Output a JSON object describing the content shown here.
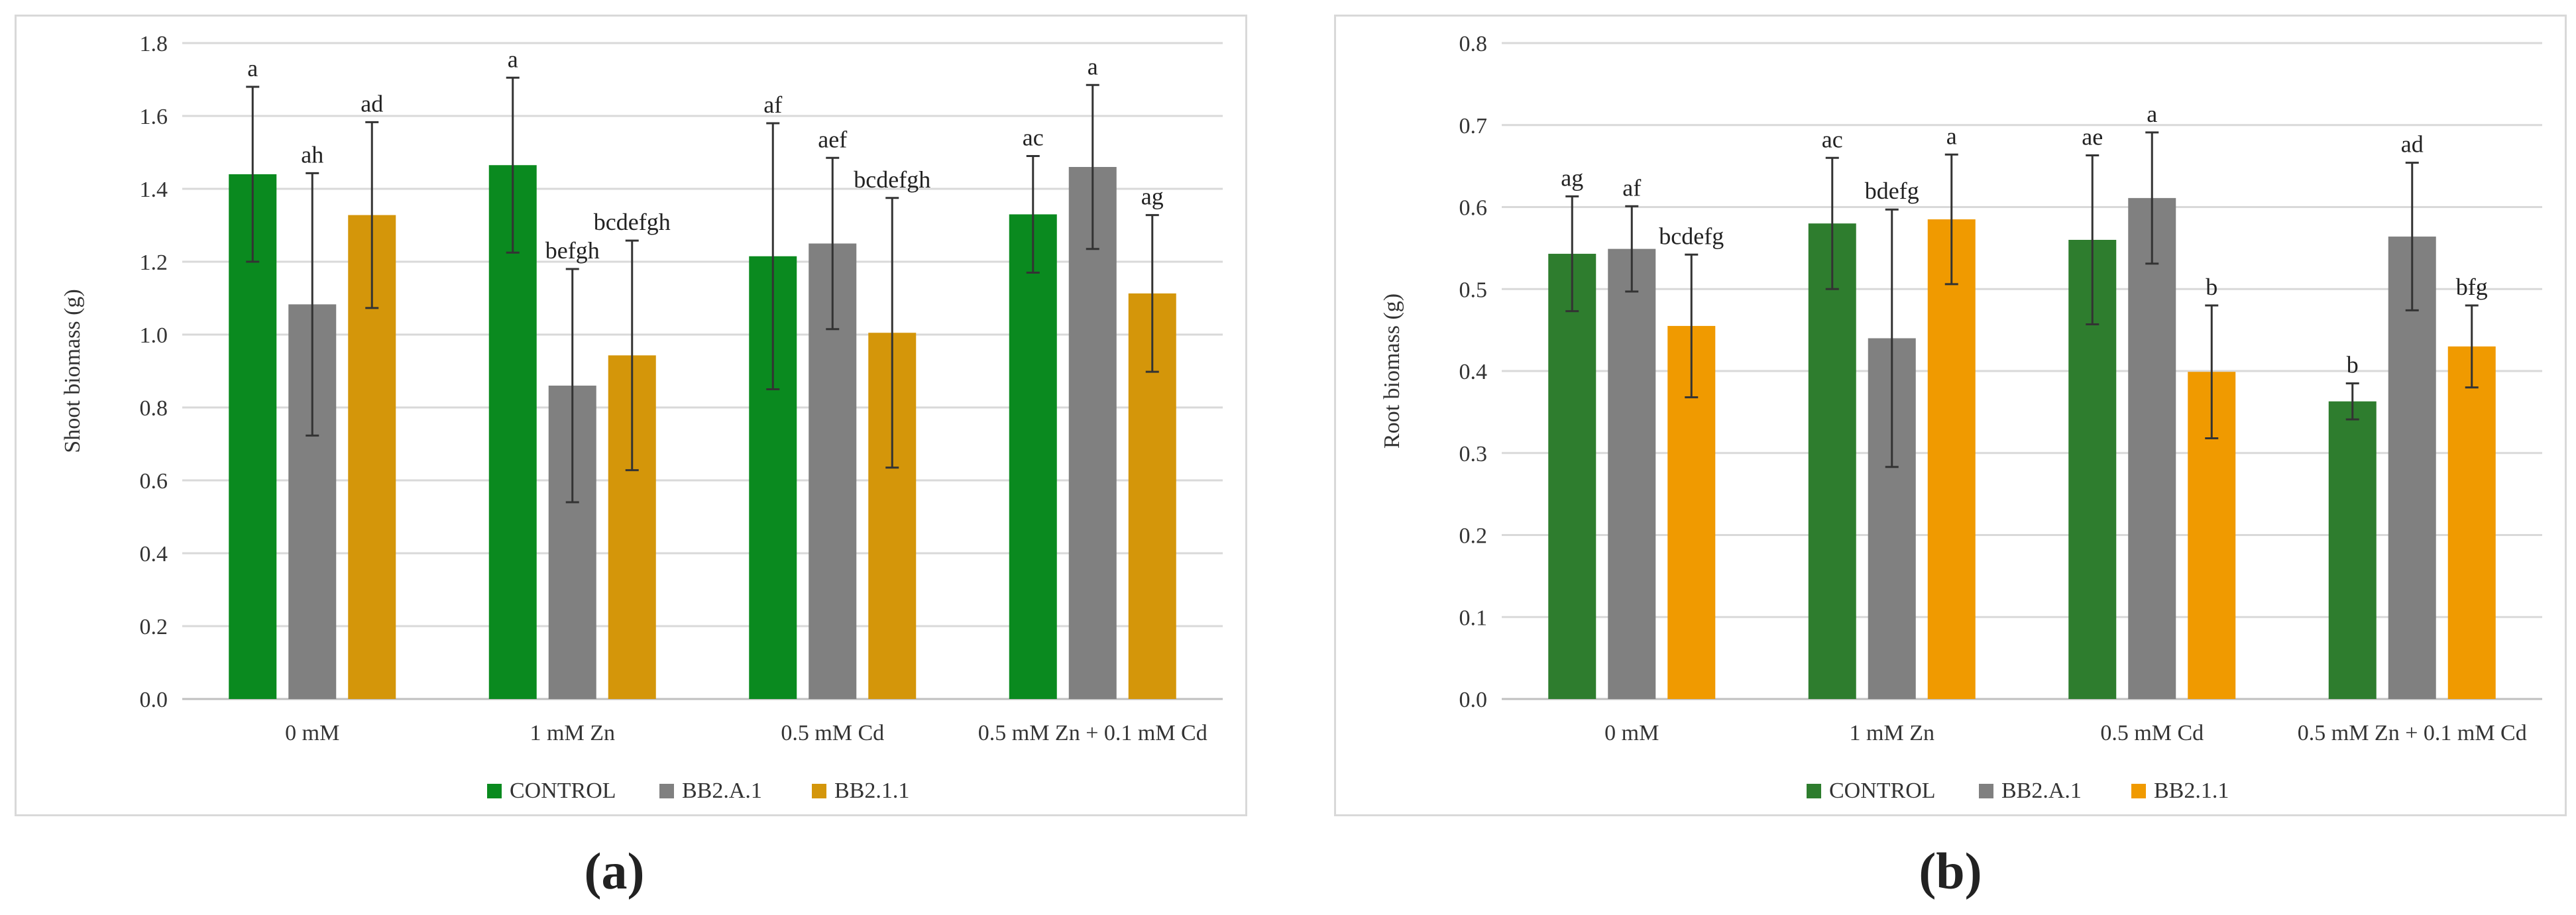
{
  "panel_labels": [
    "(a)",
    "(b)"
  ],
  "chart_data": [
    {
      "type": "bar",
      "panel": "a",
      "ylabel": "Shoot biomass (g)",
      "xlabel": "",
      "ylim": [
        0,
        1.8
      ],
      "ytick_step": 0.2,
      "ytick_decimals": 1,
      "grid": true,
      "legend_position": "bottom-center",
      "categories": [
        "0 mM",
        "1 mM Zn",
        "0.5 mM Cd",
        "0.5 mM Zn + 0.1 mM Cd"
      ],
      "series": [
        {
          "name": "CONTROL",
          "color": "#0a8a1f",
          "values": [
            1.44,
            1.465,
            1.215,
            1.33
          ],
          "errors": [
            0.24,
            0.24,
            0.365,
            0.16
          ],
          "labels": [
            "a",
            "a",
            "af",
            "ac"
          ]
        },
        {
          "name": "BB2.A.1",
          "color": "#808080",
          "values": [
            1.083,
            0.86,
            1.25,
            1.46
          ],
          "errors": [
            0.36,
            0.32,
            0.235,
            0.225
          ],
          "labels": [
            "ah",
            "befgh",
            "aef",
            "a"
          ]
        },
        {
          "name": "BB2.1.1",
          "color": "#d4960a",
          "values": [
            1.328,
            0.943,
            1.005,
            1.113
          ],
          "errors": [
            0.255,
            0.315,
            0.37,
            0.215
          ],
          "labels": [
            "ad",
            "bcdefgh",
            "bcdefgh",
            "ag"
          ]
        }
      ]
    },
    {
      "type": "bar",
      "panel": "b",
      "ylabel": "Root biomass (g)",
      "xlabel": "",
      "ylim": [
        0,
        0.8
      ],
      "ytick_step": 0.1,
      "ytick_decimals": 1,
      "grid": true,
      "legend_position": "bottom-center",
      "categories": [
        "0 mM",
        "1 mM Zn",
        "0.5 mM Cd",
        "0.5 mM Zn + 0.1 mM Cd"
      ],
      "series": [
        {
          "name": "CONTROL",
          "color": "#2e7d2e",
          "values": [
            0.543,
            0.58,
            0.56,
            0.363
          ],
          "errors": [
            0.07,
            0.08,
            0.103,
            0.022
          ],
          "labels": [
            "ag",
            "ac",
            "ae",
            "b"
          ]
        },
        {
          "name": "BB2.A.1",
          "color": "#808080",
          "values": [
            0.549,
            0.44,
            0.611,
            0.564
          ],
          "errors": [
            0.052,
            0.157,
            0.08,
            0.09
          ],
          "labels": [
            "af",
            "bdefg",
            "a",
            "ad"
          ]
        },
        {
          "name": "BB2.1.1",
          "color": "#f09a00",
          "values": [
            0.455,
            0.585,
            0.399,
            0.43
          ],
          "errors": [
            0.087,
            0.079,
            0.081,
            0.05
          ],
          "labels": [
            "bcdefg",
            "a",
            "b",
            "bfg"
          ]
        }
      ]
    }
  ]
}
